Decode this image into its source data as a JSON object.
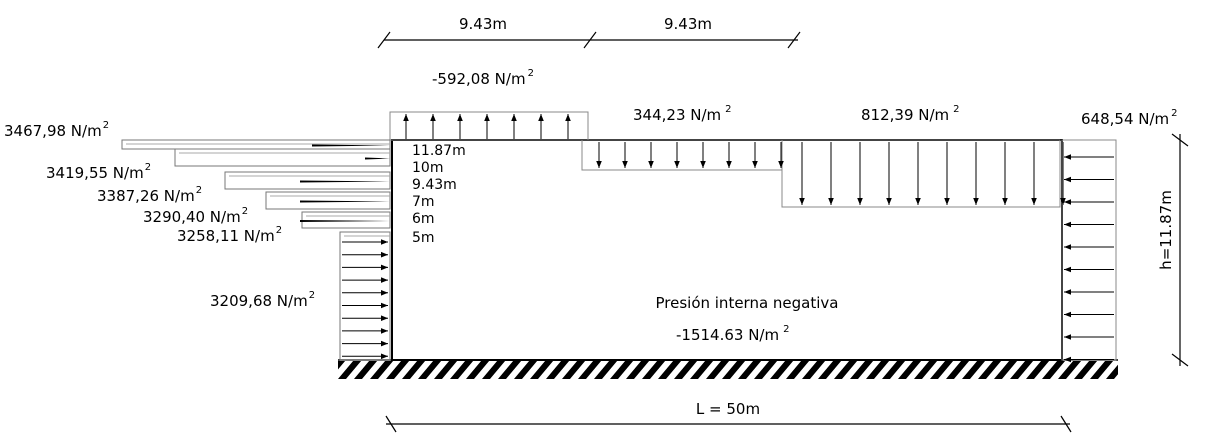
{
  "dimensions": {
    "span_1": "9.43m",
    "span_2": "9.43m",
    "length": "L = 50m",
    "height": "h=11.87m"
  },
  "roof_loads": {
    "windward_overhang": {
      "value": "-592,08 N/m",
      "exp": "2"
    },
    "roof_zone_1": {
      "value": "344,23 N/m",
      "exp": "2"
    },
    "roof_zone_2": {
      "value": "812,39 N/m",
      "exp": "2"
    },
    "leeward_wall": {
      "value": "648,54 N/m",
      "exp": "2"
    }
  },
  "windward_pressures": [
    {
      "value": "3467,98 N/m",
      "exp": "2"
    },
    {
      "value": "3419,55 N/m",
      "exp": "2"
    },
    {
      "value": "3387,26 N/m",
      "exp": "2"
    },
    {
      "value": "3290,40 N/m",
      "exp": "2"
    },
    {
      "value": "3258,11 N/m",
      "exp": "2"
    },
    {
      "value": "3209,68 N/m",
      "exp": "2"
    }
  ],
  "height_levels": [
    "11.87m",
    "10m",
    "9.43m",
    "7m",
    "6m",
    "5m"
  ],
  "internal_pressure": {
    "title": "Presión interna negativa",
    "value": "-1514.63 N/m",
    "exp": "2"
  }
}
